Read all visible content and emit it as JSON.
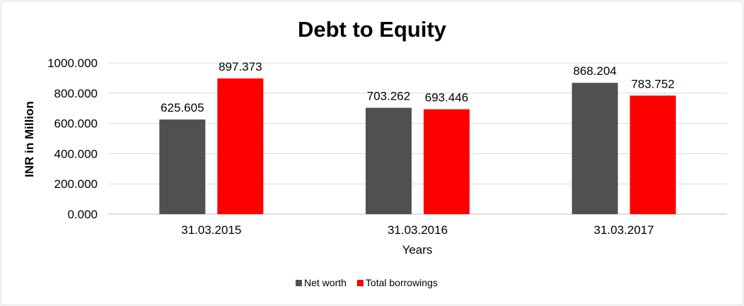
{
  "chart_data": {
    "type": "bar",
    "title": "Debt to Equity",
    "xlabel": "Years",
    "ylabel": "INR in Million",
    "categories": [
      "31.03.2015",
      "31.03.2016",
      "31.03.2017"
    ],
    "series": [
      {
        "name": "Net worth",
        "color": "#505050",
        "values": [
          625.605,
          703.262,
          868.204
        ]
      },
      {
        "name": "Total borrowings",
        "color": "#ff0000",
        "values": [
          897.373,
          693.446,
          783.752
        ]
      }
    ],
    "ylim": [
      0,
      1000
    ],
    "yticks": [
      0,
      200,
      400,
      600,
      800,
      1000
    ],
    "ytick_labels": [
      "0.000",
      "200.000",
      "400.000",
      "600.000",
      "800.000",
      "1000.000"
    ],
    "data_labels": [
      [
        "625.605",
        "703.262",
        "868.204"
      ],
      [
        "897.373",
        "693.446",
        "783.752"
      ]
    ],
    "grid": true,
    "legend_position": "bottom"
  }
}
